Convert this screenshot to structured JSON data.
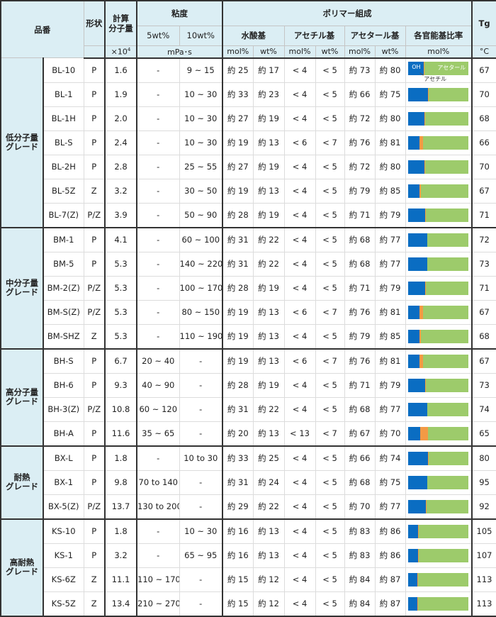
{
  "header": {
    "grade_name": "品番",
    "shape": "形状",
    "mw_label_line1": "計算",
    "mw_label_line2": "分子量",
    "mw_unit_base": "×10",
    "mw_unit_exp": "4",
    "viscosity": "粘度",
    "visc_5wt": "5wt%",
    "visc_10wt": "10wt%",
    "visc_unit": "mPa･s",
    "polymer_composition": "ポリマー組成",
    "hydroxyl": "水酸基",
    "acetyl": "アセチル基",
    "acetal": "アセタール基",
    "ratio": "各官能基比率",
    "mol_unit": "mol%",
    "wt_unit": "wt%",
    "tg": "Tg",
    "tg_unit": "°C"
  },
  "legend": {
    "oh": "OH",
    "acetal": "アセタール",
    "acetyl": "アセチル"
  },
  "colors": {
    "header_bg": "#dbeef4",
    "oh": "#0a6dc2",
    "acetyl": "#f39a45",
    "acetal": "#9dcb6b"
  },
  "groups": [
    {
      "label": "低分子量\nグレード",
      "rows": [
        {
          "name": "BL-10",
          "shape": "P",
          "mw": "1.6",
          "v5": "-",
          "v10": "9 ~ 15",
          "oh_mol": "約 25",
          "oh_wt": "約 17",
          "ac_mol": "< 4",
          "ac_wt": "< 5",
          "al_mol": "約 73",
          "al_wt": "約 80",
          "tg": "67",
          "bar": [
            25,
            2,
            73
          ]
        },
        {
          "name": "BL-1",
          "shape": "P",
          "mw": "1.9",
          "v5": "-",
          "v10": "10 ~ 30",
          "oh_mol": "約 33",
          "oh_wt": "約 23",
          "ac_mol": "< 4",
          "ac_wt": "< 5",
          "al_mol": "約 66",
          "al_wt": "約 75",
          "tg": "70",
          "bar": [
            33,
            1,
            66
          ]
        },
        {
          "name": "BL-1H",
          "shape": "P",
          "mw": "2.0",
          "v5": "-",
          "v10": "10 ~ 30",
          "oh_mol": "約 27",
          "oh_wt": "約 19",
          "ac_mol": "< 4",
          "ac_wt": "< 5",
          "al_mol": "約 72",
          "al_wt": "約 80",
          "tg": "68",
          "bar": [
            27,
            1,
            72
          ]
        },
        {
          "name": "BL-S",
          "shape": "P",
          "mw": "2.4",
          "v5": "-",
          "v10": "10 ~ 30",
          "oh_mol": "約 19",
          "oh_wt": "約 13",
          "ac_mol": "< 6",
          "ac_wt": "< 7",
          "al_mol": "約 76",
          "al_wt": "約 81",
          "tg": "66",
          "bar": [
            19,
            5,
            76
          ]
        },
        {
          "name": "BL-2H",
          "shape": "P",
          "mw": "2.8",
          "v5": "-",
          "v10": "25 ~ 55",
          "oh_mol": "約 27",
          "oh_wt": "約 19",
          "ac_mol": "< 4",
          "ac_wt": "< 5",
          "al_mol": "約 72",
          "al_wt": "約 80",
          "tg": "70",
          "bar": [
            27,
            1,
            72
          ]
        },
        {
          "name": "BL-5Z",
          "shape": "Z",
          "mw": "3.2",
          "v5": "-",
          "v10": "30 ~ 50",
          "oh_mol": "約 19",
          "oh_wt": "約 13",
          "ac_mol": "< 4",
          "ac_wt": "< 5",
          "al_mol": "約 79",
          "al_wt": "約 85",
          "tg": "67",
          "bar": [
            19,
            2,
            79
          ]
        },
        {
          "name": "BL-7(Z)",
          "shape": "P/Z",
          "mw": "3.9",
          "v5": "-",
          "v10": "50 ~ 90",
          "oh_mol": "約 28",
          "oh_wt": "約 19",
          "ac_mol": "< 4",
          "ac_wt": "< 5",
          "al_mol": "約 71",
          "al_wt": "約 79",
          "tg": "71",
          "bar": [
            28,
            1,
            71
          ]
        }
      ]
    },
    {
      "label": "中分子量\nグレード",
      "rows": [
        {
          "name": "BM-1",
          "shape": "P",
          "mw": "4.1",
          "v5": "-",
          "v10": "60 ~ 100",
          "oh_mol": "約 31",
          "oh_wt": "約 22",
          "ac_mol": "< 4",
          "ac_wt": "< 5",
          "al_mol": "約 68",
          "al_wt": "約 77",
          "tg": "72",
          "bar": [
            31,
            1,
            68
          ]
        },
        {
          "name": "BM-5",
          "shape": "P",
          "mw": "5.3",
          "v5": "-",
          "v10": "140 ~ 220",
          "oh_mol": "約 31",
          "oh_wt": "約 22",
          "ac_mol": "< 4",
          "ac_wt": "< 5",
          "al_mol": "約 68",
          "al_wt": "約 77",
          "tg": "73",
          "bar": [
            31,
            1,
            68
          ]
        },
        {
          "name": "BM-2(Z)",
          "shape": "P/Z",
          "mw": "5.3",
          "v5": "-",
          "v10": "100 ~ 170",
          "oh_mol": "約 28",
          "oh_wt": "約 19",
          "ac_mol": "< 4",
          "ac_wt": "< 5",
          "al_mol": "約 71",
          "al_wt": "約 79",
          "tg": "71",
          "bar": [
            28,
            1,
            71
          ]
        },
        {
          "name": "BM-S(Z)",
          "shape": "P/Z",
          "mw": "5.3",
          "v5": "-",
          "v10": "80 ~ 150",
          "oh_mol": "約 19",
          "oh_wt": "約 13",
          "ac_mol": "< 6",
          "ac_wt": "< 7",
          "al_mol": "約 76",
          "al_wt": "約 81",
          "tg": "67",
          "bar": [
            19,
            5,
            76
          ]
        },
        {
          "name": "BM-SHZ",
          "shape": "Z",
          "mw": "5.3",
          "v5": "-",
          "v10": "110 ~ 190",
          "oh_mol": "約 19",
          "oh_wt": "約 13",
          "ac_mol": "< 4",
          "ac_wt": "< 5",
          "al_mol": "約 79",
          "al_wt": "約 85",
          "tg": "68",
          "bar": [
            19,
            2,
            79
          ]
        }
      ]
    },
    {
      "label": "高分子量\nグレード",
      "rows": [
        {
          "name": "BH-S",
          "shape": "P",
          "mw": "6.7",
          "v5": "20 ~ 40",
          "v10": "-",
          "oh_mol": "約 19",
          "oh_wt": "約 13",
          "ac_mol": "< 6",
          "ac_wt": "< 7",
          "al_mol": "約 76",
          "al_wt": "約 81",
          "tg": "67",
          "bar": [
            19,
            5,
            76
          ]
        },
        {
          "name": "BH-6",
          "shape": "P",
          "mw": "9.3",
          "v5": "40 ~ 90",
          "v10": "-",
          "oh_mol": "約 28",
          "oh_wt": "約 19",
          "ac_mol": "< 4",
          "ac_wt": "< 5",
          "al_mol": "約 71",
          "al_wt": "約 79",
          "tg": "73",
          "bar": [
            28,
            1,
            71
          ]
        },
        {
          "name": "BH-3(Z)",
          "shape": "P/Z",
          "mw": "10.8",
          "v5": "60 ~ 120",
          "v10": "-",
          "oh_mol": "約 31",
          "oh_wt": "約 22",
          "ac_mol": "< 4",
          "ac_wt": "< 5",
          "al_mol": "約 68",
          "al_wt": "約 77",
          "tg": "74",
          "bar": [
            31,
            1,
            68
          ]
        },
        {
          "name": "BH-A",
          "shape": "P",
          "mw": "11.6",
          "v5": "35 ~ 65",
          "v10": "-",
          "oh_mol": "約 20",
          "oh_wt": "約 13",
          "ac_mol": "< 13",
          "ac_wt": "< 7",
          "al_mol": "約 67",
          "al_wt": "約 70",
          "tg": "65",
          "bar": [
            20,
            13,
            67
          ]
        }
      ]
    },
    {
      "label": "耐熱\nグレード",
      "rows": [
        {
          "name": "BX-L",
          "shape": "P",
          "mw": "1.8",
          "v5": "-",
          "v10": "10 to 30",
          "oh_mol": "約 33",
          "oh_wt": "約 25",
          "ac_mol": "< 4",
          "ac_wt": "< 5",
          "al_mol": "約 66",
          "al_wt": "約 74",
          "tg": "80",
          "bar": [
            33,
            1,
            66
          ]
        },
        {
          "name": "BX-1",
          "shape": "P",
          "mw": "9.8",
          "v5": "70 to 140",
          "v10": "-",
          "oh_mol": "約 31",
          "oh_wt": "約 24",
          "ac_mol": "< 4",
          "ac_wt": "< 5",
          "al_mol": "約 68",
          "al_wt": "約 75",
          "tg": "95",
          "bar": [
            31,
            1,
            68
          ]
        },
        {
          "name": "BX-5(Z)",
          "shape": "P/Z",
          "mw": "13.7",
          "v5": "130 to 200",
          "v10": "-",
          "oh_mol": "約 29",
          "oh_wt": "約 22",
          "ac_mol": "< 4",
          "ac_wt": "< 5",
          "al_mol": "約 70",
          "al_wt": "約 77",
          "tg": "92",
          "bar": [
            29,
            1,
            70
          ]
        }
      ]
    },
    {
      "label": "高耐熱\nグレード",
      "rows": [
        {
          "name": "KS-10",
          "shape": "P",
          "mw": "1.8",
          "v5": "-",
          "v10": "10 ~ 30",
          "oh_mol": "約 16",
          "oh_wt": "約 13",
          "ac_mol": "< 4",
          "ac_wt": "< 5",
          "al_mol": "約 83",
          "al_wt": "約 86",
          "tg": "105",
          "bar": [
            16,
            1,
            83
          ]
        },
        {
          "name": "KS-1",
          "shape": "P",
          "mw": "3.2",
          "v5": "-",
          "v10": "65 ~ 95",
          "oh_mol": "約 16",
          "oh_wt": "約 13",
          "ac_mol": "< 4",
          "ac_wt": "< 5",
          "al_mol": "約 83",
          "al_wt": "約 86",
          "tg": "107",
          "bar": [
            16,
            1,
            83
          ]
        },
        {
          "name": "KS-6Z",
          "shape": "Z",
          "mw": "11.1",
          "v5": "110 ~ 170",
          "v10": "-",
          "oh_mol": "約 15",
          "oh_wt": "約 12",
          "ac_mol": "< 4",
          "ac_wt": "< 5",
          "al_mol": "約 84",
          "al_wt": "約 87",
          "tg": "113",
          "bar": [
            15,
            1,
            84
          ]
        },
        {
          "name": "KS-5Z",
          "shape": "Z",
          "mw": "13.4",
          "v5": "210 ~ 270",
          "v10": "-",
          "oh_mol": "約 15",
          "oh_wt": "約 12",
          "ac_mol": "< 4",
          "ac_wt": "< 5",
          "al_mol": "約 84",
          "al_wt": "約 87",
          "tg": "113",
          "bar": [
            15,
            1,
            84
          ]
        }
      ]
    }
  ]
}
